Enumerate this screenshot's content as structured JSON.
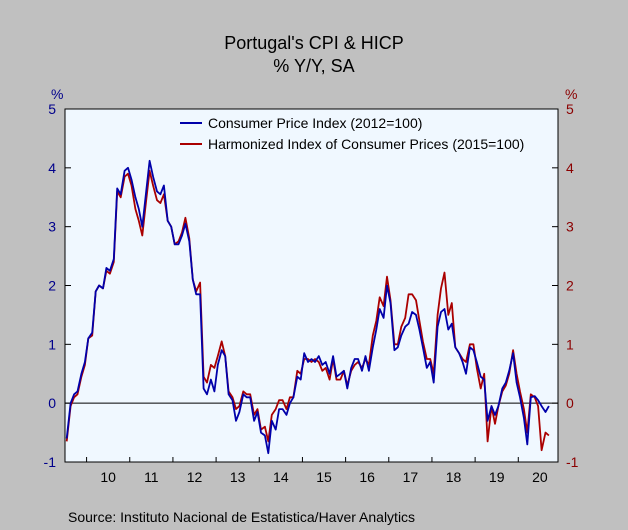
{
  "title": "Portugal's CPI & HICP",
  "subtitle": "% Y/Y, SA",
  "source": "Source:  Instituto Nacional de Estatistica/Haver Analytics",
  "chart_data": {
    "type": "line",
    "title": "Portugal's CPI & HICP",
    "subtitle": "% Y/Y, SA",
    "left_unit": "%",
    "right_unit": "%",
    "ylim": [
      -1,
      5
    ],
    "yticks": [
      -1,
      0,
      1,
      2,
      3,
      4,
      5
    ],
    "xlim": [
      2009.5,
      2020.92
    ],
    "xtick_labels": [
      {
        "year": 2010,
        "label": "10"
      },
      {
        "year": 2011,
        "label": "11"
      },
      {
        "year": 2012,
        "label": "12"
      },
      {
        "year": 2013,
        "label": "13"
      },
      {
        "year": 2014,
        "label": "14"
      },
      {
        "year": 2015,
        "label": "15"
      },
      {
        "year": 2016,
        "label": "16"
      },
      {
        "year": 2017,
        "label": "17"
      },
      {
        "year": 2018,
        "label": "18"
      },
      {
        "year": 2019,
        "label": "19"
      },
      {
        "year": 2020,
        "label": "20"
      }
    ],
    "grid": false,
    "zero_line": true,
    "legend_position": "top-right",
    "colors": {
      "plot_bg": "#f0f8ff",
      "page_bg": "#c0c0c0",
      "left_axis": "#00008b",
      "right_axis": "#8b0000"
    },
    "series": [
      {
        "name": "Consumer Price Index (2012=100)",
        "color": "#0000aa",
        "points": [
          [
            2009.54,
            -0.6
          ],
          [
            2009.63,
            0.0
          ],
          [
            2009.71,
            0.15
          ],
          [
            2009.79,
            0.2
          ],
          [
            2009.88,
            0.5
          ],
          [
            2009.96,
            0.7
          ],
          [
            2010.04,
            1.1
          ],
          [
            2010.13,
            1.2
          ],
          [
            2010.21,
            1.9
          ],
          [
            2010.29,
            2.0
          ],
          [
            2010.38,
            1.95
          ],
          [
            2010.46,
            2.3
          ],
          [
            2010.54,
            2.25
          ],
          [
            2010.63,
            2.45
          ],
          [
            2010.71,
            3.65
          ],
          [
            2010.79,
            3.55
          ],
          [
            2010.88,
            3.95
          ],
          [
            2010.96,
            4.0
          ],
          [
            2011.04,
            3.8
          ],
          [
            2011.13,
            3.5
          ],
          [
            2011.21,
            3.3
          ],
          [
            2011.29,
            3.0
          ],
          [
            2011.38,
            3.6
          ],
          [
            2011.46,
            4.12
          ],
          [
            2011.54,
            3.85
          ],
          [
            2011.63,
            3.6
          ],
          [
            2011.71,
            3.55
          ],
          [
            2011.79,
            3.7
          ],
          [
            2011.88,
            3.1
          ],
          [
            2011.96,
            3.0
          ],
          [
            2012.04,
            2.7
          ],
          [
            2012.13,
            2.7
          ],
          [
            2012.21,
            2.85
          ],
          [
            2012.29,
            3.05
          ],
          [
            2012.38,
            2.75
          ],
          [
            2012.46,
            2.1
          ],
          [
            2012.54,
            1.85
          ],
          [
            2012.63,
            1.85
          ],
          [
            2012.71,
            0.25
          ],
          [
            2012.79,
            0.15
          ],
          [
            2012.88,
            0.4
          ],
          [
            2012.96,
            0.2
          ],
          [
            2013.04,
            0.65
          ],
          [
            2013.13,
            0.9
          ],
          [
            2013.21,
            0.8
          ],
          [
            2013.29,
            0.15
          ],
          [
            2013.38,
            0.05
          ],
          [
            2013.46,
            -0.3
          ],
          [
            2013.54,
            -0.15
          ],
          [
            2013.63,
            0.15
          ],
          [
            2013.71,
            0.1
          ],
          [
            2013.79,
            0.1
          ],
          [
            2013.88,
            -0.3
          ],
          [
            2013.96,
            -0.15
          ],
          [
            2014.04,
            -0.5
          ],
          [
            2014.13,
            -0.55
          ],
          [
            2014.21,
            -0.85
          ],
          [
            2014.29,
            -0.3
          ],
          [
            2014.38,
            -0.45
          ],
          [
            2014.46,
            -0.1
          ],
          [
            2014.54,
            -0.1
          ],
          [
            2014.63,
            -0.2
          ],
          [
            2014.71,
            0.0
          ],
          [
            2014.79,
            0.1
          ],
          [
            2014.88,
            0.45
          ],
          [
            2014.96,
            0.4
          ],
          [
            2015.04,
            0.85
          ],
          [
            2015.13,
            0.7
          ],
          [
            2015.21,
            0.75
          ],
          [
            2015.29,
            0.7
          ],
          [
            2015.38,
            0.8
          ],
          [
            2015.46,
            0.65
          ],
          [
            2015.54,
            0.7
          ],
          [
            2015.63,
            0.5
          ],
          [
            2015.71,
            0.8
          ],
          [
            2015.79,
            0.45
          ],
          [
            2015.88,
            0.5
          ],
          [
            2015.96,
            0.55
          ],
          [
            2016.04,
            0.25
          ],
          [
            2016.13,
            0.6
          ],
          [
            2016.21,
            0.75
          ],
          [
            2016.29,
            0.75
          ],
          [
            2016.38,
            0.55
          ],
          [
            2016.46,
            0.8
          ],
          [
            2016.54,
            0.55
          ],
          [
            2016.63,
            0.95
          ],
          [
            2016.71,
            1.25
          ],
          [
            2016.79,
            1.6
          ],
          [
            2016.88,
            1.45
          ],
          [
            2016.96,
            2.0
          ],
          [
            2017.04,
            1.7
          ],
          [
            2017.13,
            0.9
          ],
          [
            2017.21,
            0.95
          ],
          [
            2017.29,
            1.15
          ],
          [
            2017.38,
            1.3
          ],
          [
            2017.46,
            1.35
          ],
          [
            2017.54,
            1.55
          ],
          [
            2017.63,
            1.5
          ],
          [
            2017.71,
            1.25
          ],
          [
            2017.79,
            0.95
          ],
          [
            2017.88,
            0.6
          ],
          [
            2017.96,
            0.7
          ],
          [
            2018.04,
            0.35
          ],
          [
            2018.13,
            1.3
          ],
          [
            2018.21,
            1.55
          ],
          [
            2018.29,
            1.6
          ],
          [
            2018.38,
            1.25
          ],
          [
            2018.46,
            1.35
          ],
          [
            2018.54,
            0.95
          ],
          [
            2018.63,
            0.85
          ],
          [
            2018.71,
            0.7
          ],
          [
            2018.79,
            0.5
          ],
          [
            2018.88,
            0.95
          ],
          [
            2018.96,
            0.9
          ],
          [
            2019.04,
            0.7
          ],
          [
            2019.13,
            0.45
          ],
          [
            2019.21,
            0.4
          ],
          [
            2019.29,
            -0.3
          ],
          [
            2019.38,
            -0.05
          ],
          [
            2019.46,
            -0.2
          ],
          [
            2019.54,
            -0.05
          ],
          [
            2019.63,
            0.25
          ],
          [
            2019.71,
            0.35
          ],
          [
            2019.79,
            0.55
          ],
          [
            2019.88,
            0.85
          ],
          [
            2019.96,
            0.35
          ],
          [
            2020.04,
            0.1
          ],
          [
            2020.13,
            -0.25
          ],
          [
            2020.21,
            -0.7
          ],
          [
            2020.29,
            0.1
          ],
          [
            2020.38,
            0.12
          ],
          [
            2020.46,
            0.05
          ],
          [
            2020.54,
            -0.05
          ],
          [
            2020.63,
            -0.15
          ],
          [
            2020.71,
            -0.05
          ]
        ]
      },
      {
        "name": "Harmonized Index of Consumer Prices (2015=100)",
        "color": "#aa0000",
        "points": [
          [
            2009.54,
            -0.65
          ],
          [
            2009.63,
            -0.05
          ],
          [
            2009.71,
            0.1
          ],
          [
            2009.79,
            0.15
          ],
          [
            2009.88,
            0.45
          ],
          [
            2009.96,
            0.65
          ],
          [
            2010.04,
            1.1
          ],
          [
            2010.13,
            1.15
          ],
          [
            2010.21,
            1.9
          ],
          [
            2010.29,
            2.0
          ],
          [
            2010.38,
            1.95
          ],
          [
            2010.46,
            2.25
          ],
          [
            2010.54,
            2.2
          ],
          [
            2010.63,
            2.4
          ],
          [
            2010.71,
            3.6
          ],
          [
            2010.79,
            3.5
          ],
          [
            2010.88,
            3.85
          ],
          [
            2010.96,
            3.9
          ],
          [
            2011.04,
            3.7
          ],
          [
            2011.13,
            3.3
          ],
          [
            2011.21,
            3.1
          ],
          [
            2011.29,
            2.85
          ],
          [
            2011.38,
            3.45
          ],
          [
            2011.46,
            3.95
          ],
          [
            2011.54,
            3.7
          ],
          [
            2011.63,
            3.45
          ],
          [
            2011.71,
            3.4
          ],
          [
            2011.79,
            3.55
          ],
          [
            2011.88,
            3.1
          ],
          [
            2011.96,
            3.0
          ],
          [
            2012.04,
            2.7
          ],
          [
            2012.13,
            2.75
          ],
          [
            2012.21,
            2.9
          ],
          [
            2012.29,
            3.15
          ],
          [
            2012.38,
            2.8
          ],
          [
            2012.46,
            2.1
          ],
          [
            2012.54,
            1.9
          ],
          [
            2012.63,
            2.05
          ],
          [
            2012.71,
            0.45
          ],
          [
            2012.79,
            0.35
          ],
          [
            2012.88,
            0.65
          ],
          [
            2012.96,
            0.6
          ],
          [
            2013.04,
            0.8
          ],
          [
            2013.13,
            1.05
          ],
          [
            2013.21,
            0.8
          ],
          [
            2013.29,
            0.2
          ],
          [
            2013.38,
            0.1
          ],
          [
            2013.46,
            -0.1
          ],
          [
            2013.54,
            -0.05
          ],
          [
            2013.63,
            0.2
          ],
          [
            2013.71,
            0.15
          ],
          [
            2013.79,
            0.15
          ],
          [
            2013.88,
            -0.2
          ],
          [
            2013.96,
            -0.1
          ],
          [
            2014.04,
            -0.45
          ],
          [
            2014.13,
            -0.4
          ],
          [
            2014.21,
            -0.65
          ],
          [
            2014.29,
            -0.2
          ],
          [
            2014.38,
            -0.1
          ],
          [
            2014.46,
            0.05
          ],
          [
            2014.54,
            0.05
          ],
          [
            2014.63,
            -0.1
          ],
          [
            2014.71,
            0.1
          ],
          [
            2014.79,
            0.1
          ],
          [
            2014.88,
            0.55
          ],
          [
            2014.96,
            0.5
          ],
          [
            2015.04,
            0.75
          ],
          [
            2015.13,
            0.75
          ],
          [
            2015.21,
            0.7
          ],
          [
            2015.29,
            0.75
          ],
          [
            2015.38,
            0.7
          ],
          [
            2015.46,
            0.55
          ],
          [
            2015.54,
            0.6
          ],
          [
            2015.63,
            0.4
          ],
          [
            2015.71,
            0.75
          ],
          [
            2015.79,
            0.4
          ],
          [
            2015.88,
            0.4
          ],
          [
            2015.96,
            0.55
          ],
          [
            2016.04,
            0.3
          ],
          [
            2016.13,
            0.55
          ],
          [
            2016.21,
            0.65
          ],
          [
            2016.29,
            0.7
          ],
          [
            2016.38,
            0.6
          ],
          [
            2016.46,
            0.75
          ],
          [
            2016.54,
            0.65
          ],
          [
            2016.63,
            1.15
          ],
          [
            2016.71,
            1.4
          ],
          [
            2016.79,
            1.8
          ],
          [
            2016.88,
            1.65
          ],
          [
            2016.96,
            2.15
          ],
          [
            2017.04,
            1.75
          ],
          [
            2017.13,
            1.0
          ],
          [
            2017.21,
            1.0
          ],
          [
            2017.29,
            1.3
          ],
          [
            2017.38,
            1.45
          ],
          [
            2017.46,
            1.85
          ],
          [
            2017.54,
            1.85
          ],
          [
            2017.63,
            1.75
          ],
          [
            2017.71,
            1.4
          ],
          [
            2017.79,
            1.05
          ],
          [
            2017.88,
            0.75
          ],
          [
            2017.96,
            0.75
          ],
          [
            2018.04,
            0.5
          ],
          [
            2018.13,
            1.5
          ],
          [
            2018.21,
            1.95
          ],
          [
            2018.29,
            2.22
          ],
          [
            2018.38,
            1.5
          ],
          [
            2018.46,
            1.7
          ],
          [
            2018.54,
            0.95
          ],
          [
            2018.63,
            0.85
          ],
          [
            2018.71,
            0.75
          ],
          [
            2018.79,
            0.7
          ],
          [
            2018.88,
            1.0
          ],
          [
            2018.96,
            1.0
          ],
          [
            2019.04,
            0.6
          ],
          [
            2019.13,
            0.25
          ],
          [
            2019.21,
            0.5
          ],
          [
            2019.29,
            -0.65
          ],
          [
            2019.38,
            -0.05
          ],
          [
            2019.46,
            -0.35
          ],
          [
            2019.54,
            -0.05
          ],
          [
            2019.63,
            0.2
          ],
          [
            2019.71,
            0.3
          ],
          [
            2019.79,
            0.5
          ],
          [
            2019.88,
            0.9
          ],
          [
            2019.96,
            0.5
          ],
          [
            2020.04,
            0.2
          ],
          [
            2020.13,
            -0.1
          ],
          [
            2020.21,
            -0.5
          ],
          [
            2020.29,
            0.15
          ],
          [
            2020.38,
            0.1
          ],
          [
            2020.46,
            -0.05
          ],
          [
            2020.54,
            -0.8
          ],
          [
            2020.63,
            -0.5
          ],
          [
            2020.71,
            -0.55
          ]
        ]
      }
    ]
  }
}
